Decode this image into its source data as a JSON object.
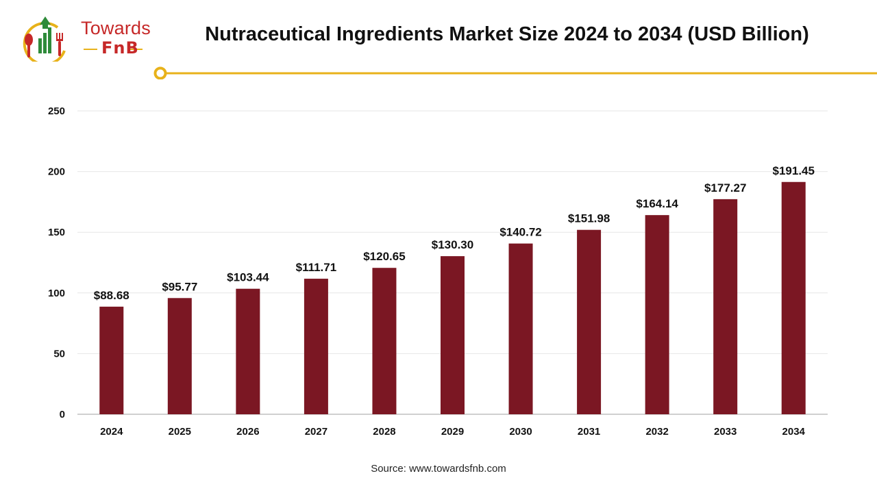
{
  "header": {
    "logo_line1": "Towards",
    "logo_line2": "FnB",
    "title": "Nutraceutical Ingredients Market Size 2024 to 2034 (USD Billion)"
  },
  "footer": {
    "source": "Source: www.towardsfnb.com"
  },
  "colors": {
    "bar": "#7b1723",
    "accent_line": "#e8b21a",
    "logo_red": "#c62828",
    "logo_green": "#2e8b3a"
  },
  "chart_data": {
    "type": "bar",
    "title": "Nutraceutical Ingredients Market Size 2024 to 2034 (USD Billion)",
    "xlabel": "",
    "ylabel": "",
    "categories": [
      "2024",
      "2025",
      "2026",
      "2027",
      "2028",
      "2029",
      "2030",
      "2031",
      "2032",
      "2033",
      "2034"
    ],
    "values": [
      88.68,
      95.77,
      103.44,
      111.71,
      120.65,
      130.3,
      140.72,
      151.98,
      164.14,
      177.27,
      191.45
    ],
    "data_labels": [
      "$88.68",
      "$95.77",
      "$103.44",
      "$111.71",
      "$120.65",
      "$130.30",
      "$140.72",
      "$151.98",
      "$164.14",
      "$177.27",
      "$191.45"
    ],
    "ylim": [
      0,
      250
    ],
    "yticks": [
      0,
      50,
      100,
      150,
      200,
      250
    ],
    "grid": true,
    "legend": "none"
  }
}
